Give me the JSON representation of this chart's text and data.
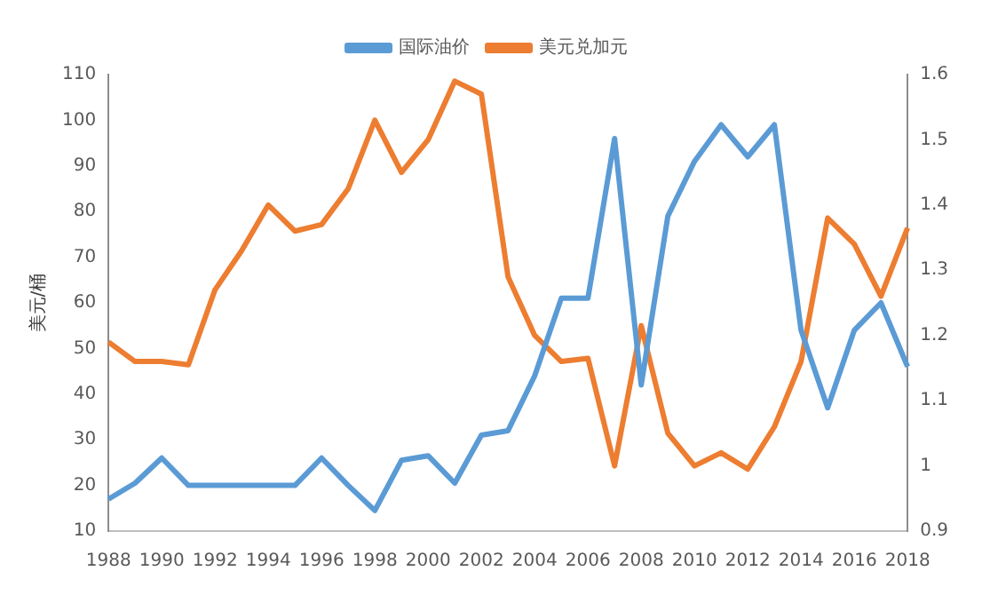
{
  "chart_data": {
    "type": "line",
    "ylabel": "美元/桶",
    "categories": [
      "1988",
      null,
      "1990",
      null,
      "1992",
      null,
      "1994",
      null,
      "1996",
      null,
      "1998",
      null,
      "2000",
      null,
      "2002",
      null,
      "2004",
      null,
      "2006",
      null,
      "2008",
      null,
      "2010",
      null,
      "2012",
      null,
      "2014",
      null,
      "2016",
      null,
      "2018"
    ],
    "series": [
      {
        "name": "国际油价",
        "color": "#5b9bd5",
        "values": [
          17,
          20.5,
          26,
          20,
          20,
          20,
          20,
          20,
          26,
          20,
          14.5,
          25.5,
          26.5,
          20.5,
          31,
          32,
          44,
          61,
          61,
          96,
          42,
          79,
          91,
          99,
          92,
          99,
          54,
          37,
          54,
          60,
          46
        ]
      },
      {
        "name": "美元兑加元",
        "color": "#ed7d31",
        "axis": "y2",
        "values": [
          1.19,
          1.16,
          1.16,
          1.155,
          1.27,
          1.33,
          1.4,
          1.36,
          1.37,
          1.425,
          1.53,
          1.45,
          1.5,
          1.59,
          1.57,
          1.29,
          1.2,
          1.16,
          1.165,
          1.0,
          1.215,
          1.05,
          1.0,
          1.02,
          0.995,
          1.06,
          1.16,
          1.38,
          1.34,
          1.26,
          1.365
        ]
      }
    ],
    "ylim": [
      10,
      110
    ],
    "yticks": [
      10,
      20,
      30,
      40,
      50,
      60,
      70,
      80,
      90,
      100,
      110
    ],
    "y2lim": [
      0.9,
      1.6
    ],
    "y2ticks": [
      0.9,
      1,
      1.1,
      1.2,
      1.3,
      1.4,
      1.5,
      1.6
    ],
    "grid": false,
    "legend": "top",
    "marker": "none",
    "line_style": "solid"
  }
}
